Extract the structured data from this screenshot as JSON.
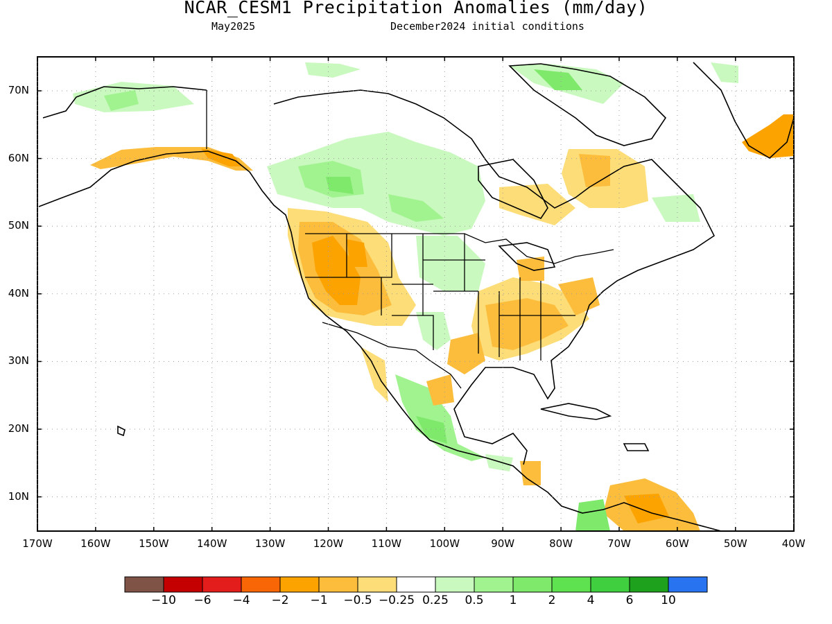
{
  "title": "NCAR_CESM1 Precipitation Anomalies (mm/day)",
  "subtitle_left": "May2025",
  "subtitle_right": "December2024 initial conditions",
  "latitude_labels": [
    "70N",
    "60N",
    "50N",
    "40N",
    "30N",
    "20N",
    "10N"
  ],
  "longitude_labels": [
    "170W",
    "160W",
    "150W",
    "140W",
    "130W",
    "120W",
    "110W",
    "100W",
    "90W",
    "80W",
    "70W",
    "60W",
    "50W",
    "40W"
  ],
  "colorbar": {
    "colors": [
      "#7f5446",
      "#c40000",
      "#e31c1c",
      "#f86606",
      "#fca300",
      "#fcbd3c",
      "#fddd78",
      "#ffffff",
      "#c9f9bf",
      "#a1f38f",
      "#7ee96a",
      "#5fe24f",
      "#3fcf3f",
      "#1ea21e",
      "#2873f0"
    ],
    "labels": [
      "−10",
      "−6",
      "−4",
      "−2",
      "−1",
      "−0.5",
      "−0.25",
      "0.25",
      "0.5",
      "1",
      "2",
      "4",
      "6",
      "10"
    ]
  }
}
